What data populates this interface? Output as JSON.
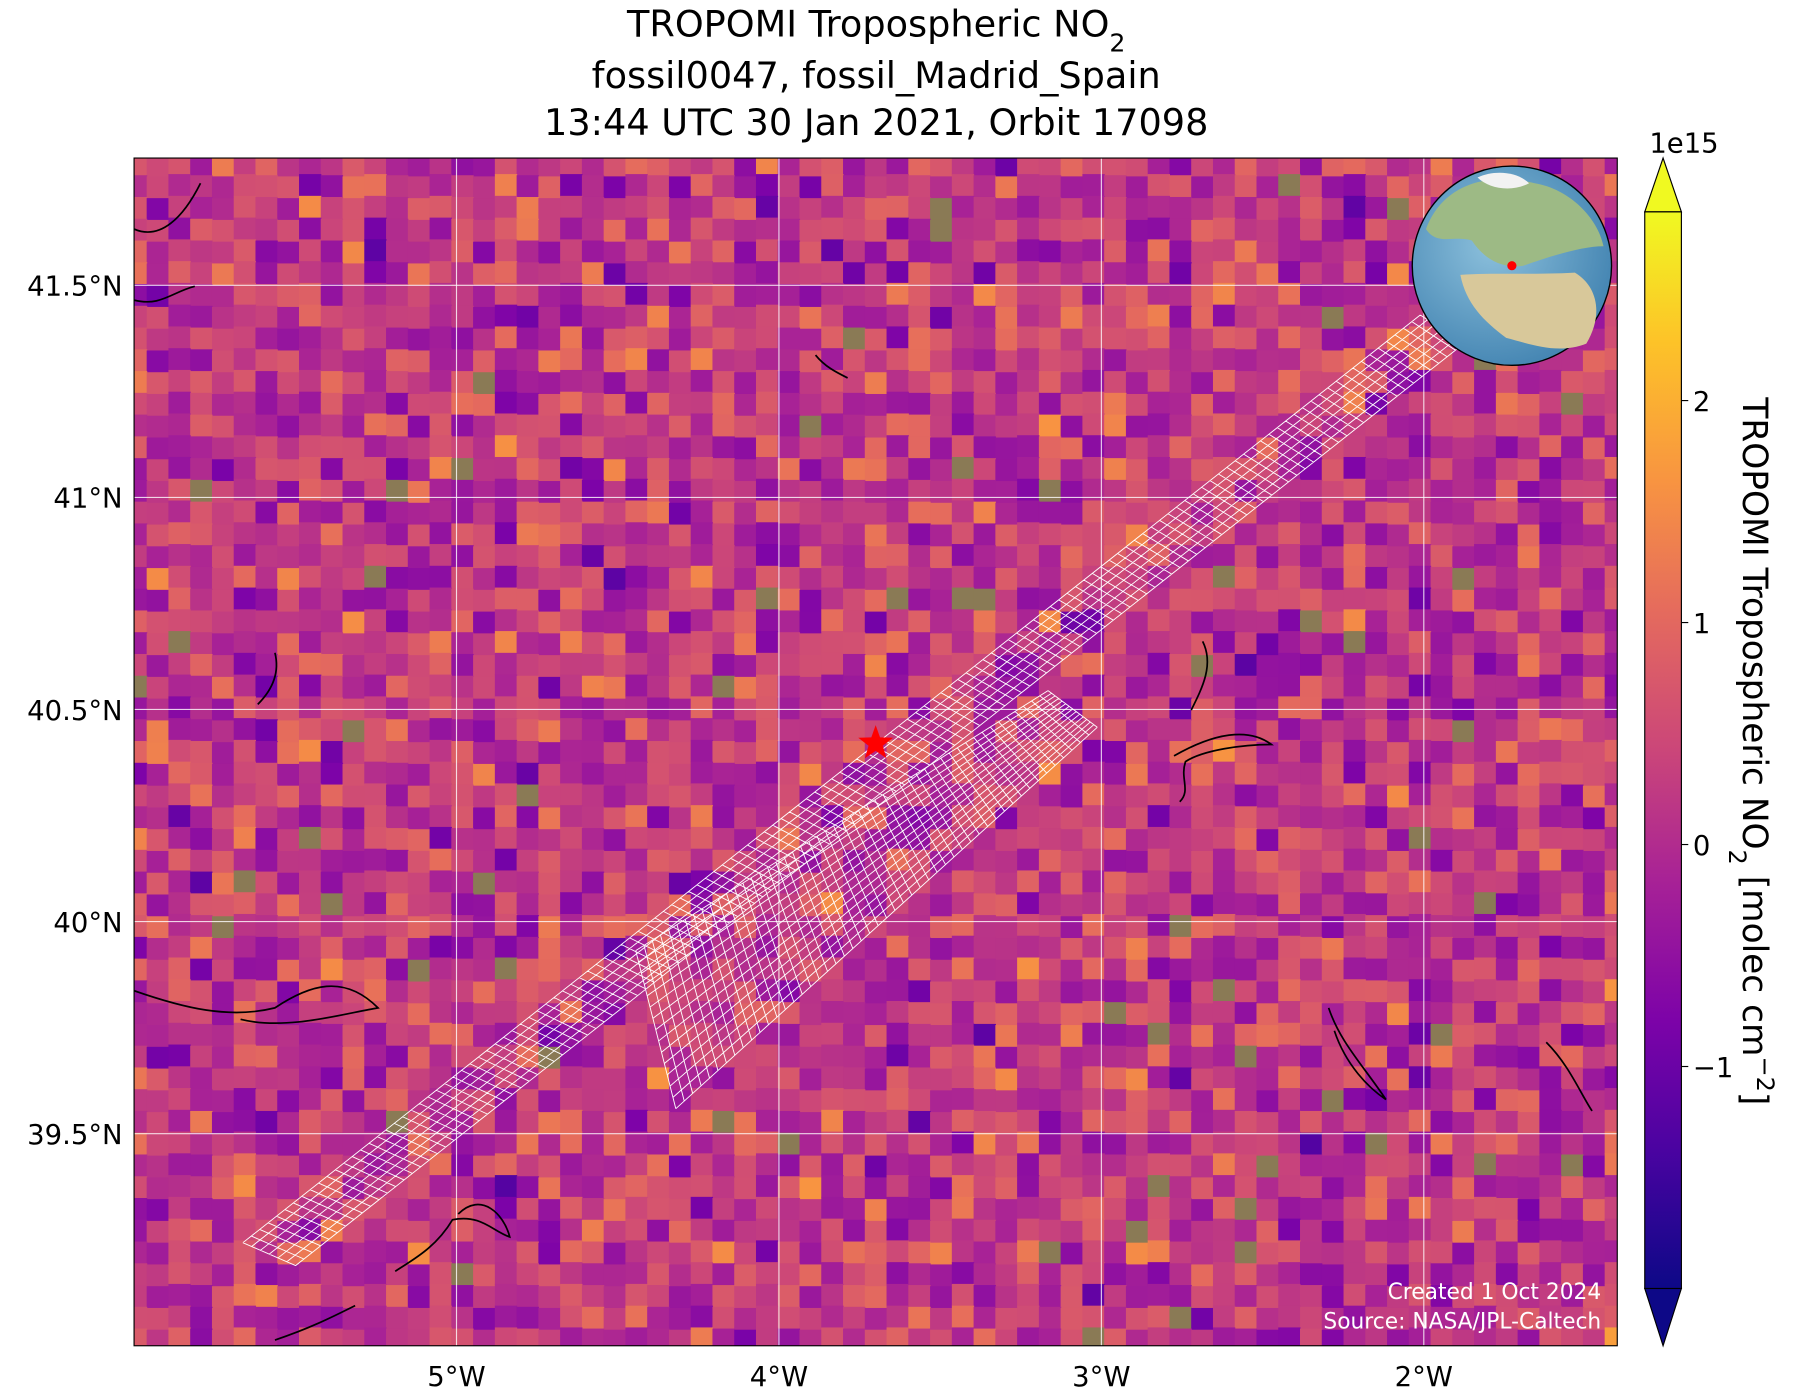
{
  "title": {
    "line1": "TROPOMI Tropospheric NO",
    "line1_sub": "2",
    "line2": "fossil0047, fossil_Madrid_Spain",
    "line3": "13:44 UTC 30 Jan 2021, Orbit 17098"
  },
  "map": {
    "xlim": [
      -6,
      -1.4
    ],
    "ylim": [
      39.0,
      41.8
    ],
    "xticks": [
      {
        "value": -5,
        "label": "5°W"
      },
      {
        "value": -4,
        "label": "4°W"
      },
      {
        "value": -3,
        "label": "3°W"
      },
      {
        "value": -2,
        "label": "2°W"
      }
    ],
    "yticks": [
      {
        "value": 39.5,
        "label": "39.5°N"
      },
      {
        "value": 40,
        "label": "40°N"
      },
      {
        "value": 40.5,
        "label": "40.5°N"
      },
      {
        "value": 41,
        "label": "41°N"
      },
      {
        "value": 41.5,
        "label": "41.5°N"
      }
    ],
    "grid": true,
    "site": {
      "lon": -3.7,
      "lat": 40.42,
      "color": "#ff0000"
    }
  },
  "colorbar": {
    "colormap": "plasma",
    "lim": [
      -2,
      2.85
    ],
    "offset": "1e15",
    "ticks": [
      {
        "value": -1,
        "label": "−1"
      },
      0,
      1,
      2
    ],
    "label": "TROPOMI Tropospheric NO",
    "label_sub": "2",
    "label_unit": " [molec cm",
    "label_sup": "−2",
    "label_end": "]"
  },
  "credits": [
    "Created 1 Oct 2024",
    "Source: NASA/JPL-Caltech"
  ]
}
